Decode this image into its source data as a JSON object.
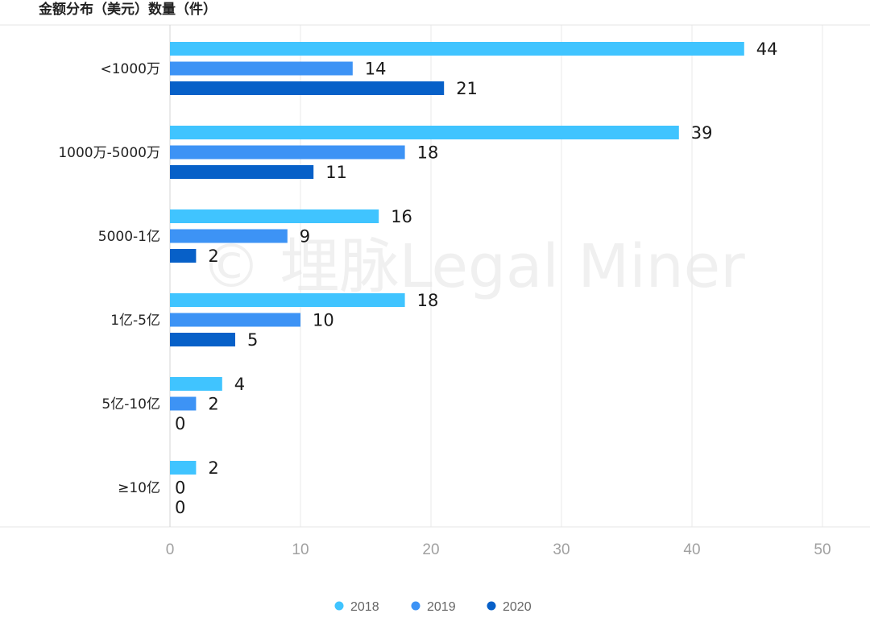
{
  "watermark": "© 埋脉Legal Miner",
  "chart_data": {
    "type": "bar",
    "orientation": "horizontal",
    "title": "金额分布（美元）数量（件）",
    "categories": [
      "<1000万",
      "1000万-5000万",
      "5000-1亿",
      "1亿-5亿",
      "5亿-10亿",
      "≥10亿"
    ],
    "series": [
      {
        "name": "2018",
        "color": "#40c4ff",
        "values": [
          44,
          39,
          16,
          18,
          4,
          2
        ]
      },
      {
        "name": "2019",
        "color": "#3d93f5",
        "values": [
          14,
          18,
          9,
          10,
          2,
          0
        ]
      },
      {
        "name": "2020",
        "color": "#0760c8",
        "values": [
          21,
          11,
          2,
          5,
          0,
          0
        ]
      }
    ],
    "xlim": [
      0,
      50
    ],
    "xticks": [
      "0",
      "10",
      "20",
      "30",
      "40",
      "50"
    ],
    "grid": true,
    "legend_position": "bottom-center",
    "data_labels": true
  }
}
